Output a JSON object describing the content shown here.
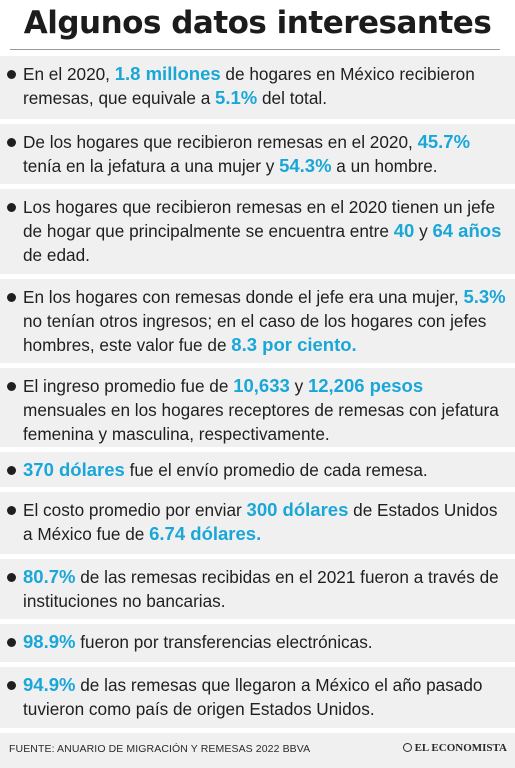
{
  "title": "Algunos datos interesantes",
  "items": [
    {
      "parts": [
        {
          "t": "En el 2020, "
        },
        {
          "t": "1.8 millones",
          "hl": true
        },
        {
          "t": " de hogares en México recibieron remesas, que equivale a "
        },
        {
          "t": "5.1%",
          "hl": true
        },
        {
          "t": " del total."
        }
      ]
    },
    {
      "parts": [
        {
          "t": "De los hogares que recibieron remesas en el 2020, "
        },
        {
          "t": "45.7%",
          "hl": true
        },
        {
          "t": " tenía en la jefatura a una mujer y "
        },
        {
          "t": "54.3%",
          "hl": true
        },
        {
          "t": " a un hombre."
        }
      ]
    },
    {
      "parts": [
        {
          "t": "Los hogares que recibieron remesas en el 2020 tienen un jefe de hogar que principalmente se encuentra entre "
        },
        {
          "t": "40",
          "hl": true
        },
        {
          "t": " y "
        },
        {
          "t": "64 años",
          "hl": true
        },
        {
          "t": " de edad."
        }
      ]
    },
    {
      "parts": [
        {
          "t": "En los hogares con remesas donde el jefe era una mujer, "
        },
        {
          "t": "5.3%",
          "hl": true
        },
        {
          "t": " no tenían otros ingresos; en el caso de los hogares con jefes hombres, este valor fue de "
        },
        {
          "t": "8.3 por ciento.",
          "hl": true
        }
      ]
    },
    {
      "parts": [
        {
          "t": "El ingreso promedio fue de "
        },
        {
          "t": "10,633",
          "hl": true
        },
        {
          "t": " y "
        },
        {
          "t": "12,206 pesos",
          "hl": true
        },
        {
          "t": " mensuales en los hogares receptores de remesas con jefatura femenina y masculina, respectivamente."
        }
      ]
    },
    {
      "parts": [
        {
          "t": "370 dólares",
          "hl": true
        },
        {
          "t": " fue el envío promedio de cada remesa."
        }
      ]
    },
    {
      "parts": [
        {
          "t": "El costo promedio por enviar "
        },
        {
          "t": "300 dólares",
          "hl": true
        },
        {
          "t": " de Estados Unidos a México fue de "
        },
        {
          "t": "6.74 dólares.",
          "hl": true
        }
      ]
    },
    {
      "parts": [
        {
          "t": "80.7%",
          "hl": true
        },
        {
          "t": " de las remesas recibidas en el 2021 fueron a través de instituciones no bancarias."
        }
      ]
    },
    {
      "parts": [
        {
          "t": "98.9%",
          "hl": true
        },
        {
          "t": " fueron por transferencias electrónicas."
        }
      ]
    },
    {
      "parts": [
        {
          "t": "94.9%",
          "hl": true
        },
        {
          "t": " de las remesas que llegaron a México el año pasado tuvieron como país de origen Estados Unidos."
        }
      ]
    }
  ],
  "footer": {
    "source": "FUENTE: ANUARIO DE MIGRACIÓN Y REMESAS 2022 BBVA",
    "brand": "EL ECONOMISTA",
    "brand_icon": "circle-logo-icon"
  },
  "colors": {
    "highlight": "#1aa7d8",
    "panel": "#f0f0f0",
    "text": "#1f1f1f"
  }
}
